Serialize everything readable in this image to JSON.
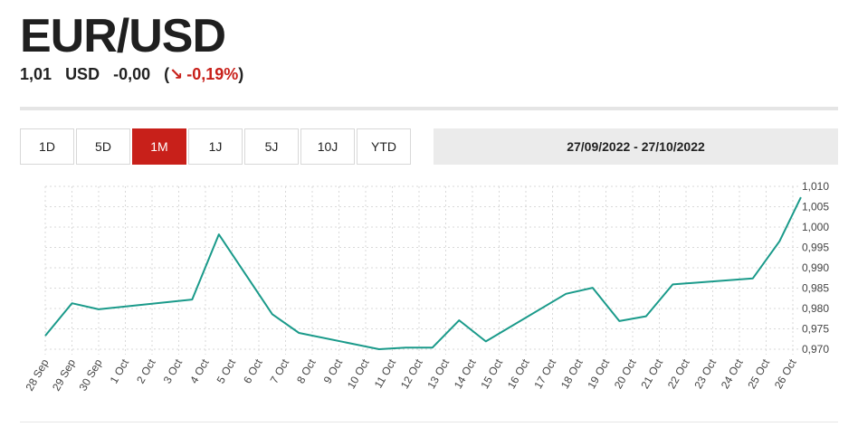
{
  "header": {
    "title": "EUR/USD",
    "price": "1,01",
    "currency": "USD",
    "change": "-0,00",
    "paren_open": "(",
    "arrow": "↘",
    "change_pct": "-0,19%",
    "paren_close": ")"
  },
  "tabs": [
    {
      "label": "1D",
      "active": false
    },
    {
      "label": "5D",
      "active": false
    },
    {
      "label": "1M",
      "active": true
    },
    {
      "label": "1J",
      "active": false
    },
    {
      "label": "5J",
      "active": false
    },
    {
      "label": "10J",
      "active": false
    },
    {
      "label": "YTD",
      "active": false
    }
  ],
  "date_range": "27/09/2022 - 27/10/2022",
  "colors": {
    "accent": "#c8201a",
    "line": "#1a9a8a",
    "grid": "#d9d9d9"
  },
  "chart_data": {
    "type": "line",
    "title": "",
    "xlabel": "",
    "ylabel": "",
    "categories": [
      "28 Sep",
      "29 Sep",
      "30 Sep",
      "1 Oct",
      "2 Oct",
      "3 Oct",
      "4 Oct",
      "5 Oct",
      "6 Oct",
      "7 Oct",
      "8 Oct",
      "9 Oct",
      "10 Oct",
      "11 Oct",
      "12 Oct",
      "13 Oct",
      "14 Oct",
      "15 Oct",
      "16 Oct",
      "17 Oct",
      "18 Oct",
      "19 Oct",
      "20 Oct",
      "21 Oct",
      "22 Oct",
      "23 Oct",
      "24 Oct",
      "25 Oct",
      "26 Oct"
    ],
    "series": [
      {
        "points": [
          {
            "x": 0,
            "y": 0.9733
          },
          {
            "x": 1,
            "y": 0.9813
          },
          {
            "x": 2,
            "y": 0.9798
          },
          {
            "x": 5.5,
            "y": 0.9822
          },
          {
            "x": 6.5,
            "y": 0.9982
          },
          {
            "x": 8.5,
            "y": 0.9786
          },
          {
            "x": 9.5,
            "y": 0.974
          },
          {
            "x": 12.5,
            "y": 0.97
          },
          {
            "x": 13.5,
            "y": 0.9704
          },
          {
            "x": 14.5,
            "y": 0.9704
          },
          {
            "x": 15.5,
            "y": 0.9771
          },
          {
            "x": 16.5,
            "y": 0.9719
          },
          {
            "x": 19.5,
            "y": 0.9836
          },
          {
            "x": 20.5,
            "y": 0.9851
          },
          {
            "x": 21.5,
            "y": 0.9769
          },
          {
            "x": 22.5,
            "y": 0.9781
          },
          {
            "x": 23.5,
            "y": 0.9859
          },
          {
            "x": 26.5,
            "y": 0.9874
          },
          {
            "x": 27.5,
            "y": 0.9965
          },
          {
            "x": 28.3,
            "y": 1.0073
          }
        ]
      }
    ],
    "y_ticks": [
      "1,010",
      "1,005",
      "1,000",
      "0,995",
      "0,990",
      "0,985",
      "0,980",
      "0,975",
      "0,970"
    ],
    "ylim": [
      0.9685,
      1.0105
    ],
    "xlim": [
      0,
      28.5
    ],
    "grid": true,
    "y_axis_side": "right"
  }
}
